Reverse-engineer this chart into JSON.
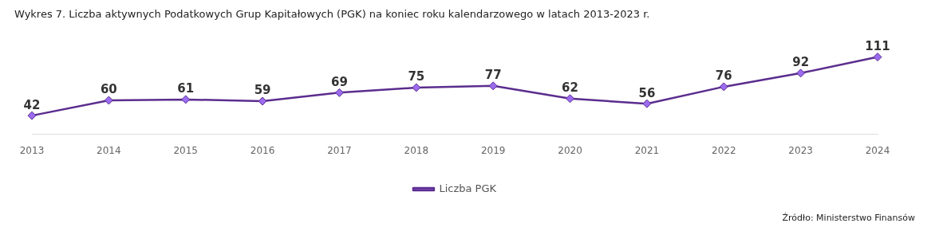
{
  "chart_data": {
    "type": "line",
    "title": "Wykres 7. Liczba aktywnych Podatkowych Grup Kapitałowych (PGK) na koniec roku kalendarzowego w latach 2013-2023 r.",
    "categories": [
      "2013",
      "2014",
      "2015",
      "2016",
      "2017",
      "2018",
      "2019",
      "2020",
      "2021",
      "2022",
      "2023",
      "2024"
    ],
    "series": [
      {
        "name": "Liczba PGK",
        "color": "#5b2d8e",
        "values": [
          42,
          60,
          61,
          59,
          69,
          75,
          77,
          62,
          56,
          76,
          92,
          111
        ]
      }
    ],
    "data_labels": true,
    "marker": "diamond",
    "line_style": "solid",
    "legend": "bottom",
    "grid": false,
    "tick_labels": "x",
    "annotations": [
      "Źródło: Ministerstwo Finansów"
    ]
  }
}
